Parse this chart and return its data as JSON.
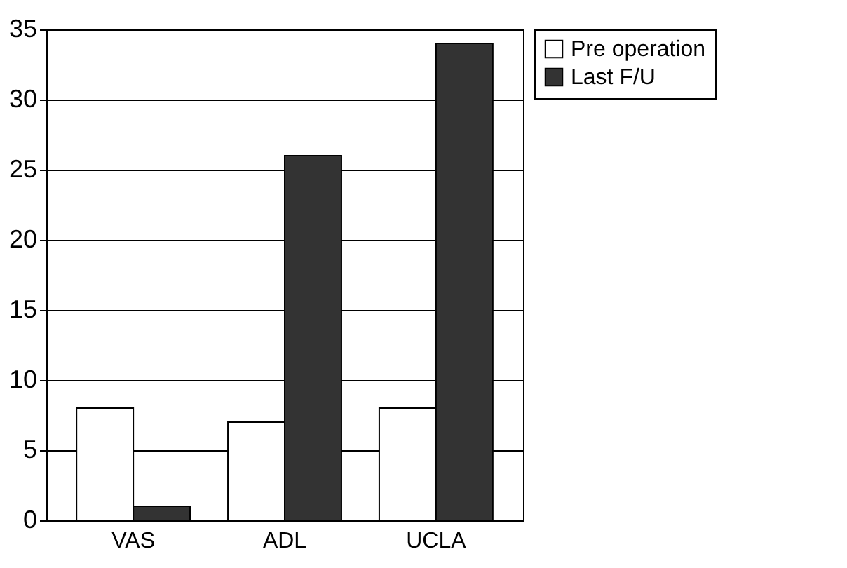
{
  "chart_data": {
    "type": "bar",
    "categories": [
      "VAS",
      "ADL",
      "UCLA"
    ],
    "series": [
      {
        "name": "Pre operation",
        "color": "#ffffff",
        "values": [
          8,
          7,
          8
        ]
      },
      {
        "name": "Last F/U",
        "color": "#333333",
        "values": [
          1,
          26,
          34
        ]
      }
    ],
    "ylim": [
      0,
      35
    ],
    "yticks": [
      0,
      5,
      10,
      15,
      20,
      25,
      30,
      35
    ],
    "grid": "y",
    "legend": "right"
  }
}
